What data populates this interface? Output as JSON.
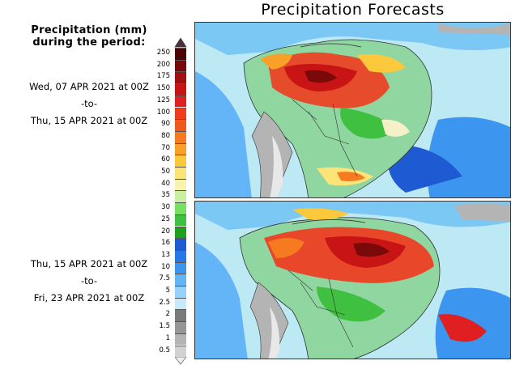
{
  "title": "Precipitation Forecasts",
  "legend": {
    "heading_line1": "Precipitation (mm)",
    "heading_line2": "during the period:",
    "units": "mm",
    "levels": [
      "250",
      "200",
      "175",
      "150",
      "125",
      "100",
      "90",
      "80",
      "70",
      "60",
      "50",
      "40",
      "35",
      "30",
      "25",
      "20",
      "16",
      "13",
      "10",
      "7.5",
      "5",
      "2.5",
      "2",
      "1.5",
      "1",
      "0.5"
    ],
    "colors": [
      "#4a0505",
      "#7a0a0a",
      "#a01010",
      "#c81414",
      "#e02020",
      "#f03c1e",
      "#f05a1e",
      "#f57a20",
      "#f8a028",
      "#fcc83c",
      "#fde478",
      "#f8f4b0",
      "#c8f0a0",
      "#78e060",
      "#40c040",
      "#1ea01e",
      "#1e5ad2",
      "#2878e6",
      "#3c96f0",
      "#64b4f8",
      "#96d2fc",
      "#c8e8fc",
      "#7a7a7a",
      "#969696",
      "#b4b4b4",
      "#d2d2d2"
    ]
  },
  "periods": [
    {
      "start": "Wed, 07 APR 2021 at 00Z",
      "sep": "-to-",
      "end": "Thu, 15 APR 2021 at 00Z"
    },
    {
      "start": "Thu, 15 APR 2021 at 00Z",
      "sep": "-to-",
      "end": "Fri, 23 APR 2021 at 00Z"
    }
  ],
  "colors": {
    "ocean": "#bde9f5",
    "land_light": "#8fd6a0"
  }
}
